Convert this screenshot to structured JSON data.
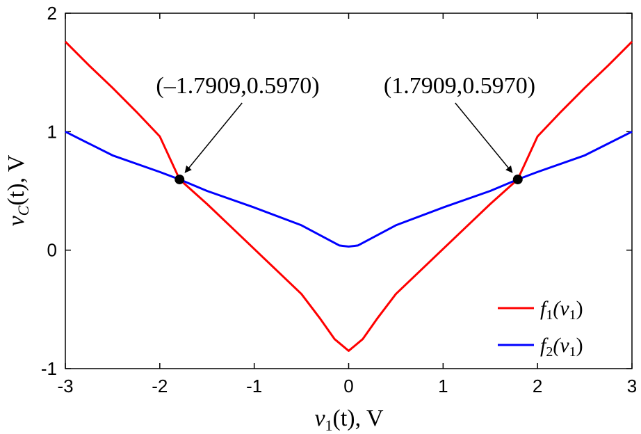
{
  "chart_data": {
    "type": "line",
    "xlim": [
      -3,
      3
    ],
    "ylim": [
      -1,
      2
    ],
    "xticks": [
      "-3",
      "-2",
      "-1",
      "0",
      "1",
      "2",
      "3"
    ],
    "yticks": [
      "-1",
      "0",
      "1",
      "2"
    ],
    "xlabel": {
      "var": "v",
      "sub": "1",
      "rest": "(t), V"
    },
    "ylabel": {
      "var": "v",
      "sub": "C",
      "rest": "(t), V"
    },
    "grid": false,
    "legend_position": "bottom-right",
    "series": [
      {
        "id": "f1",
        "legend": {
          "func": "f",
          "sub": "1",
          "open": "(v",
          "argsub": "1",
          "close": ")"
        },
        "color": "#ff0000",
        "x": [
          -3,
          -2.75,
          -2.5,
          -2.25,
          -2,
          -1.79,
          -1.5,
          -1.25,
          -1,
          -0.75,
          -0.5,
          -0.3,
          -0.15,
          0,
          0.15,
          0.3,
          0.5,
          0.75,
          1,
          1.25,
          1.5,
          1.79,
          2,
          2.25,
          2.5,
          2.75,
          3
        ],
        "y": [
          1.76,
          1.56,
          1.37,
          1.17,
          0.96,
          0.597,
          0.39,
          0.2,
          0.01,
          -0.18,
          -0.37,
          -0.58,
          -0.75,
          -0.85,
          -0.75,
          -0.58,
          -0.37,
          -0.18,
          0.01,
          0.2,
          0.39,
          0.597,
          0.96,
          1.17,
          1.37,
          1.56,
          1.76
        ]
      },
      {
        "id": "f2",
        "legend": {
          "func": "f",
          "sub": "2",
          "open": "(v",
          "argsub": "1",
          "close": ")"
        },
        "color": "#0000ff",
        "x": [
          -3,
          -2.5,
          -2,
          -1.79,
          -1.5,
          -1,
          -0.5,
          -0.1,
          0,
          0.1,
          0.5,
          1,
          1.5,
          1.79,
          2,
          2.5,
          3
        ],
        "y": [
          1.0,
          0.8,
          0.66,
          0.597,
          0.5,
          0.36,
          0.21,
          0.04,
          0.03,
          0.04,
          0.21,
          0.36,
          0.5,
          0.597,
          0.66,
          0.8,
          1.0
        ]
      }
    ],
    "annotations": [
      {
        "text": "(–1.7909,0.5970)",
        "x": -1.7909,
        "y": 0.597
      },
      {
        "text": "(1.7909,0.5970)",
        "x": 1.7909,
        "y": 0.597
      }
    ]
  }
}
